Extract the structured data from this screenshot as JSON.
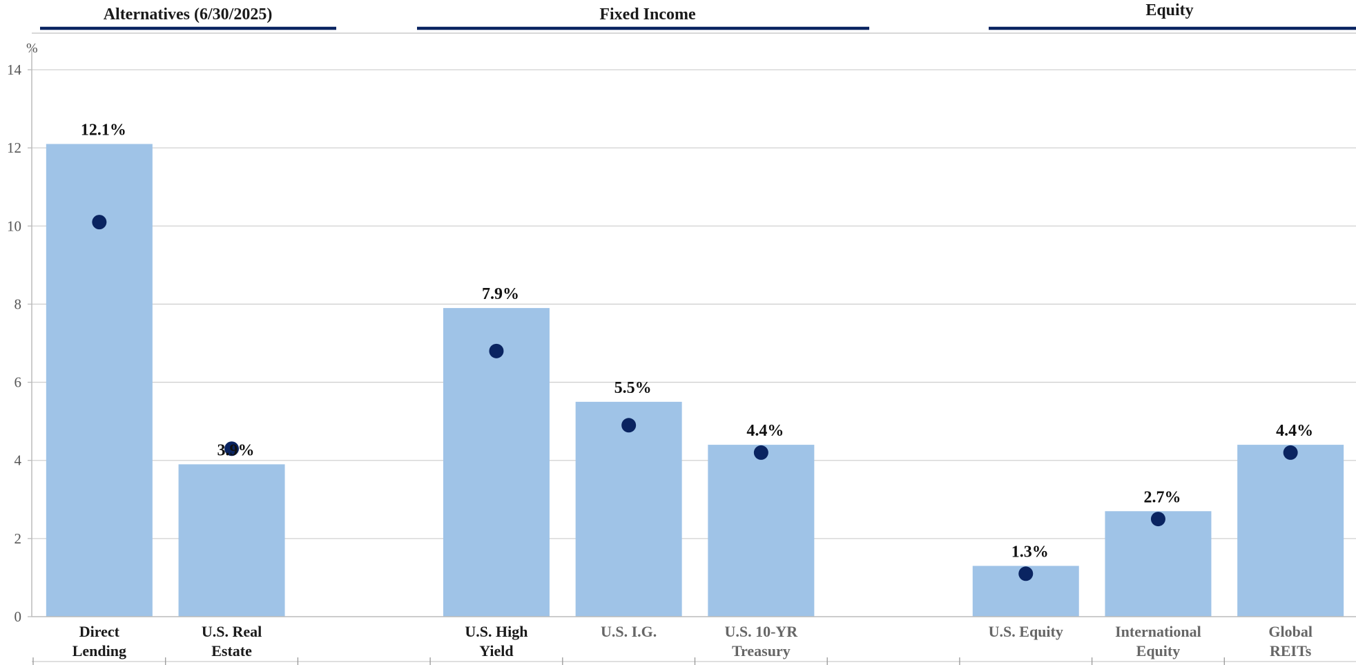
{
  "chart_data": {
    "type": "bar",
    "y_unit": "%",
    "ylim": [
      0,
      14
    ],
    "yticks": [
      0,
      2,
      4,
      6,
      8,
      10,
      12,
      14
    ],
    "grid": true,
    "groups": [
      {
        "title": "Alternatives (6/30/2025)",
        "categories": [
          "Direct Lending",
          "U.S. Real Estate"
        ]
      },
      {
        "title": "Fixed Income",
        "categories": [
          "U.S. High Yield",
          "U.S. I.G.",
          "U.S. 10-YR Treasury"
        ]
      },
      {
        "title": "Equity",
        "categories": [
          "U.S. Equity",
          "International Equity",
          "Global REITs"
        ]
      }
    ],
    "categories": [
      {
        "name": "Direct Lending",
        "lines": [
          "Direct",
          "Lending"
        ],
        "group": 0,
        "bar": 12.1,
        "dot": 10.1,
        "label": "12.1%",
        "label_color": "#1a1a1a"
      },
      {
        "name": "U.S. Real Estate",
        "lines": [
          "U.S. Real",
          "Estate"
        ],
        "group": 0,
        "bar": 3.9,
        "dot": 4.3,
        "label": "3.9%",
        "label_color": "#1a1a1a"
      },
      {
        "name": "U.S. High Yield",
        "lines": [
          "U.S. High",
          "Yield"
        ],
        "group": 1,
        "bar": 7.9,
        "dot": 6.8,
        "label": "7.9%",
        "label_color": "#1a1a1a"
      },
      {
        "name": "U.S. I.G.",
        "lines": [
          "U.S. I.G."
        ],
        "group": 1,
        "bar": 5.5,
        "dot": 4.9,
        "label": "5.5%",
        "label_color": "#666666"
      },
      {
        "name": "U.S. 10-YR Treasury",
        "lines": [
          "U.S. 10-YR",
          "Treasury"
        ],
        "group": 1,
        "bar": 4.4,
        "dot": 4.2,
        "label": "4.4%",
        "label_color": "#666666"
      },
      {
        "name": "U.S. Equity",
        "lines": [
          "U.S. Equity"
        ],
        "group": 2,
        "bar": 1.3,
        "dot": 1.1,
        "label": "1.3%",
        "label_color": "#666666"
      },
      {
        "name": "International Equity",
        "lines": [
          "International",
          "Equity"
        ],
        "group": 2,
        "bar": 2.7,
        "dot": 2.5,
        "label": "2.7%",
        "label_color": "#666666"
      },
      {
        "name": "Global REITs",
        "lines": [
          "Global",
          "REITs"
        ],
        "group": 2,
        "bar": 4.4,
        "dot": 4.2,
        "label": "4.4%",
        "label_color": "#666666"
      }
    ],
    "colors": {
      "bar": "#9fc3e7",
      "dot": "#0a2461",
      "group_rule": "#0a2461",
      "grid": "#d0d0d0"
    }
  }
}
